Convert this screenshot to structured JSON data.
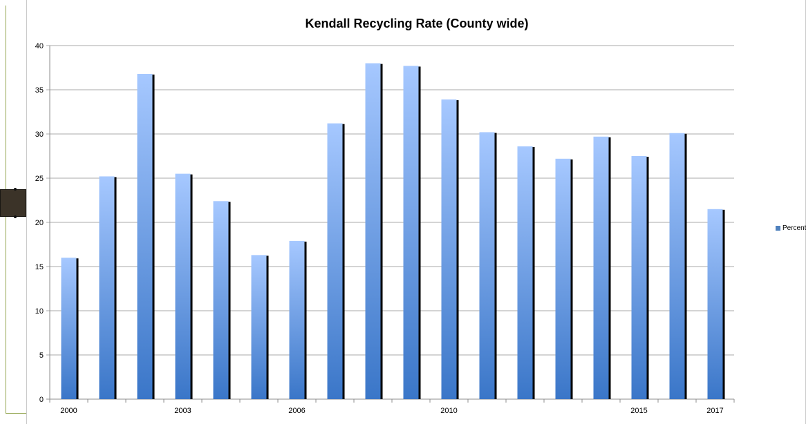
{
  "chart_data": {
    "type": "bar",
    "title": "Kendall Recycling Rate (County wide)",
    "xlabel": "",
    "ylabel": "",
    "ylim": [
      0,
      40
    ],
    "yticks": [
      0,
      5,
      10,
      15,
      20,
      25,
      30,
      35,
      40
    ],
    "categories": [
      "2000",
      "",
      "",
      "2003",
      "",
      "",
      "2006",
      "",
      "",
      "",
      "2010",
      "",
      "",
      "",
      "",
      "2015",
      "",
      "2017"
    ],
    "series": [
      {
        "name": "Percentage",
        "values": [
          16.0,
          25.2,
          36.8,
          25.5,
          22.4,
          16.3,
          17.9,
          31.2,
          38.0,
          37.7,
          33.9,
          30.2,
          28.6,
          27.2,
          29.7,
          27.5,
          30.1,
          21.5
        ]
      }
    ],
    "grid": true,
    "legend": "right",
    "colors": {
      "bar_top": "#a6c8ff",
      "bar_bottom": "#3a76c8",
      "bar_shadow": "#000000",
      "grid": "#8c8c8c"
    }
  }
}
